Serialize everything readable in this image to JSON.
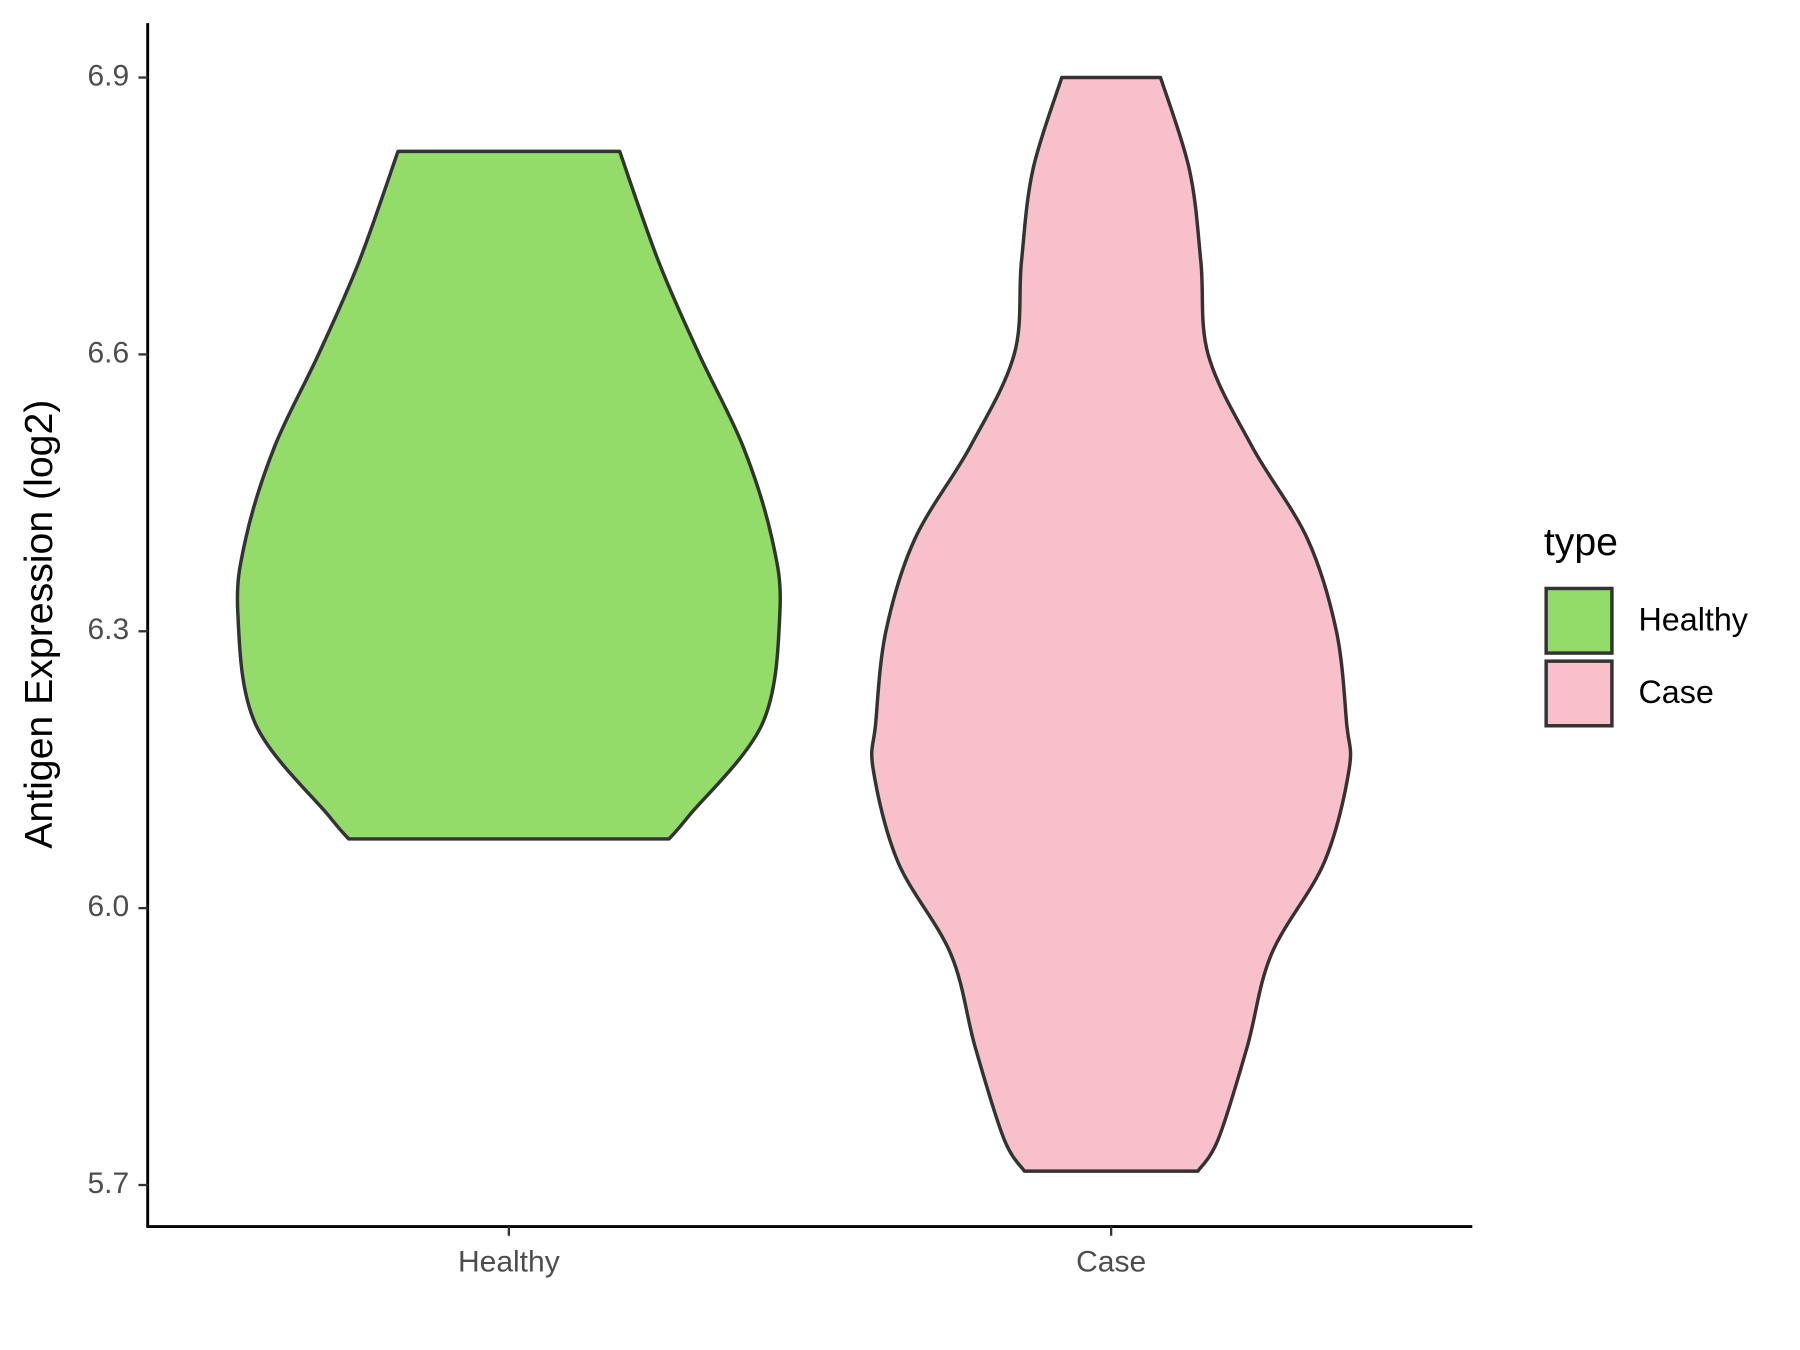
{
  "chart_data": {
    "type": "violin",
    "y_axis_label": "Antigen Expression (log2)",
    "categories": [
      "Healthy",
      "Case"
    ],
    "legend_title": "type",
    "legend_position": "right",
    "series": [
      {
        "name": "Healthy",
        "color": "#93dc6a",
        "y": [
          6.075,
          6.1,
          6.2,
          6.32,
          6.4,
          6.5,
          6.6,
          6.7,
          6.82
        ],
        "half_width": [
          0.266,
          0.299,
          0.421,
          0.45,
          0.437,
          0.389,
          0.316,
          0.249,
          0.184
        ]
      },
      {
        "name": "Case",
        "color": "#f7c0cb",
        "y": [
          5.715,
          5.75,
          5.85,
          5.95,
          6.05,
          6.15,
          6.2,
          6.3,
          6.4,
          6.5,
          6.6,
          6.7,
          6.8,
          6.9
        ],
        "half_width": [
          0.144,
          0.178,
          0.226,
          0.266,
          0.354,
          0.395,
          0.391,
          0.374,
          0.326,
          0.234,
          0.161,
          0.149,
          0.13,
          0.082
        ]
      }
    ],
    "ylim": [
      5.655,
      6.959
    ],
    "yticks": [
      5.7,
      {
        "value": 6,
        "label": "6.0"
      },
      6.3,
      6.6,
      6.9
    ],
    "grid": false
  }
}
